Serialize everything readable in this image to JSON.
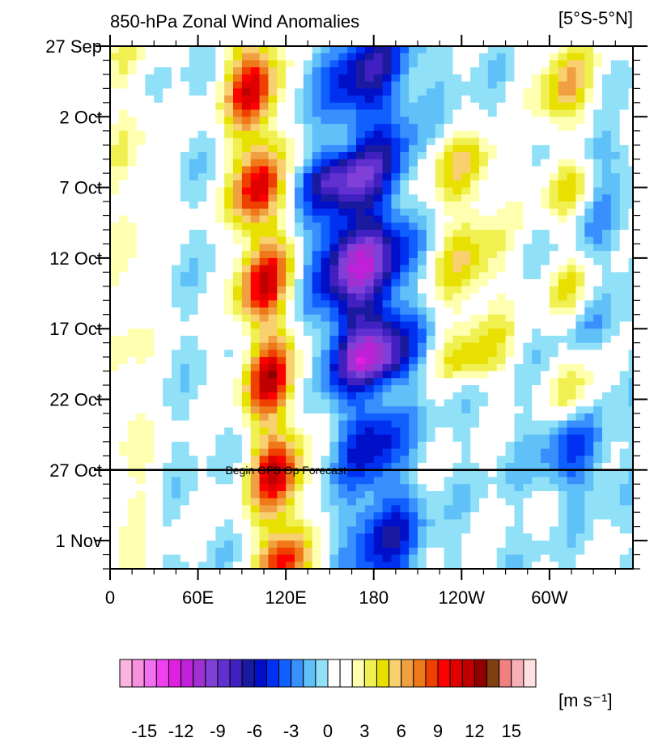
{
  "chart_data": {
    "type": "heatmap",
    "title": "850-hPa Zonal Wind Anomalies",
    "region": "[5°S-5°N]",
    "annotation": "Begin GFS Op Forecast",
    "forecast_start_label": "27 Oct",
    "x_axis": {
      "ticks": [
        "0",
        "60E",
        "120E",
        "180",
        "120W",
        "60W"
      ],
      "tick_values": [
        0,
        60,
        120,
        180,
        240,
        300
      ],
      "range": [
        0,
        357
      ]
    },
    "y_axis": {
      "ticks": [
        "27 Sep",
        "2 Oct",
        "7 Oct",
        "12 Oct",
        "17 Oct",
        "22 Oct",
        "27 Oct",
        "1 Nov"
      ],
      "tick_days": [
        0,
        5,
        10,
        15,
        20,
        25,
        30,
        35
      ],
      "range_days": [
        0,
        37
      ]
    },
    "colorbar": {
      "unit": "[m s⁻¹]",
      "labels": [
        "-15",
        "-12",
        "-9",
        "-6",
        "-3",
        "0",
        "3",
        "6",
        "9",
        "12",
        "15"
      ],
      "levels": [
        -16,
        -15,
        -14,
        -13,
        -12,
        -11,
        -10,
        -9,
        -8,
        -7,
        -6,
        -5,
        -4,
        -3,
        -2,
        -1,
        0,
        1,
        2,
        3,
        4,
        5,
        6,
        7,
        8,
        9,
        10,
        11,
        12,
        13,
        14,
        15,
        16
      ],
      "colors": [
        "#fbb4e0",
        "#f890e0",
        "#f070f0",
        "#f040f0",
        "#e020e0",
        "#c020d8",
        "#a030d0",
        "#8040d8",
        "#6030d0",
        "#4020c0",
        "#1a1aa0",
        "#0010c8",
        "#0030f0",
        "#1060ff",
        "#3890ff",
        "#60c0f8",
        "#90e0f8",
        "#ffffff",
        "#ffffff",
        "#ffffb0",
        "#f0f050",
        "#e8e000",
        "#f8d070",
        "#f0a040",
        "#f07818",
        "#f04000",
        "#ff0000",
        "#e00000",
        "#c00000",
        "#900000",
        "#804010",
        "#f08080",
        "#f8b0b8",
        "#ffe0e0"
      ]
    },
    "anomaly_features": [
      {
        "kind": "westerly",
        "lon": 95,
        "day_start": 0,
        "day_end": 36,
        "drift_deg_per_day": 0.6,
        "width_deg": 13,
        "peak": 11
      },
      {
        "kind": "westerly",
        "lon": 12,
        "day_start": 0,
        "day_end": 37,
        "drift_deg_per_day": 0,
        "width_deg": 14,
        "peak": 3
      },
      {
        "kind": "easterly",
        "lon": 175,
        "day_start": 0,
        "day_end": 22,
        "drift_deg_per_day": 0.4,
        "width_deg": 22,
        "peak": -7
      },
      {
        "kind": "easterly",
        "lon": 155,
        "day_start": 10,
        "day_end": 37,
        "drift_deg_per_day": 1.3,
        "width_deg": 18,
        "peak": -6
      },
      {
        "kind": "westerly",
        "lon": 240,
        "day_start": 8,
        "day_end": 22,
        "drift_deg_per_day": 0.5,
        "width_deg": 22,
        "peak": 5
      },
      {
        "kind": "westerly",
        "lon": 310,
        "day_start": 0,
        "day_end": 25,
        "drift_deg_per_day": 0.3,
        "width_deg": 14,
        "peak": 6
      },
      {
        "kind": "easterly",
        "lon": 325,
        "day_start": 8,
        "day_end": 30,
        "drift_deg_per_day": -0.4,
        "width_deg": 18,
        "peak": -4
      }
    ]
  }
}
